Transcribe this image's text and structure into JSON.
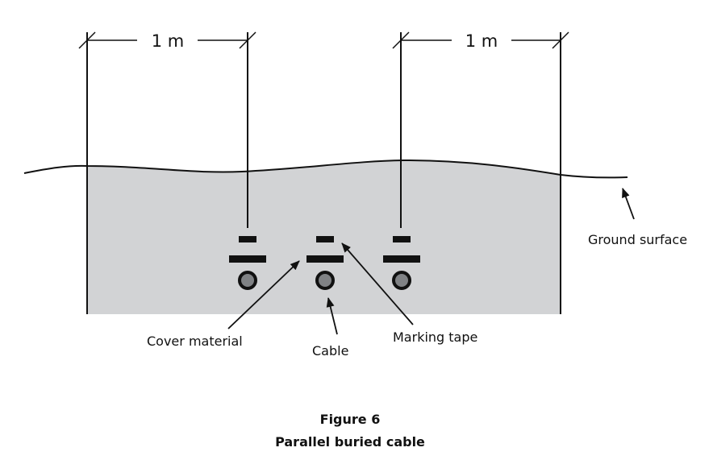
{
  "dimensions": {
    "left_label": "1 m",
    "right_label": "1 m"
  },
  "labels": {
    "ground_surface": "Ground surface",
    "cover_material": "Cover material",
    "cable": "Cable",
    "marking_tape": "Marking tape"
  },
  "caption": {
    "figure_number": "Figure 6",
    "title": "Parallel buried cable"
  },
  "colors": {
    "soil": "#d2d3d5",
    "ink": "#111111",
    "cable_core": "#808285"
  }
}
